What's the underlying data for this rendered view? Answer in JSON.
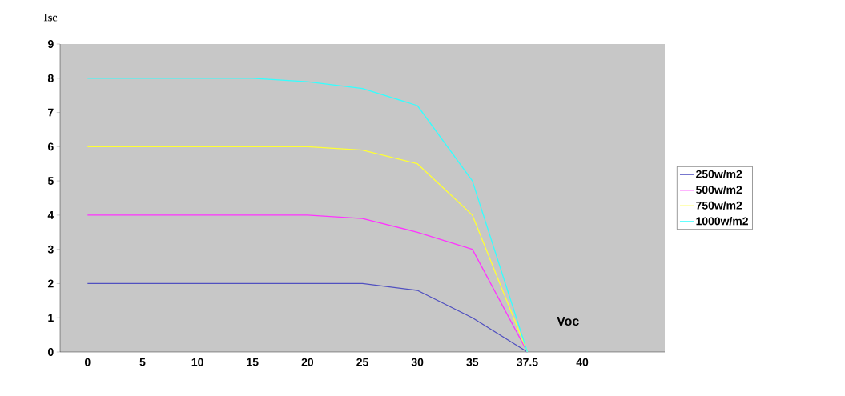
{
  "chart_data": {
    "type": "line",
    "ylabel": "Isc",
    "xlabel": "Voc",
    "categories": [
      "0",
      "5",
      "10",
      "15",
      "20",
      "25",
      "30",
      "35",
      "37.5",
      "40",
      null
    ],
    "series": [
      {
        "name": "250w/m2",
        "color": "#5050c0",
        "values": [
          2,
          2,
          2,
          2,
          2,
          2,
          1.8,
          1,
          0,
          null,
          null
        ]
      },
      {
        "name": "500w/m2",
        "color": "#ff33ff",
        "values": [
          4,
          4,
          4,
          4,
          4,
          3.9,
          3.5,
          3,
          0,
          null,
          null
        ]
      },
      {
        "name": "750w/m2",
        "color": "#ffff33",
        "values": [
          6,
          6,
          6,
          6,
          6,
          5.9,
          5.5,
          4,
          0,
          null,
          null
        ]
      },
      {
        "name": "1000w/m2",
        "color": "#33ffff",
        "values": [
          8,
          8,
          8,
          8,
          7.9,
          7.7,
          7.2,
          5,
          0,
          null,
          null
        ]
      }
    ],
    "ylim": [
      0,
      9
    ],
    "yticks": [
      0,
      1,
      2,
      3,
      4,
      5,
      6,
      7,
      8,
      9
    ],
    "legend": "right",
    "marker": "none",
    "line_style": "solid"
  }
}
